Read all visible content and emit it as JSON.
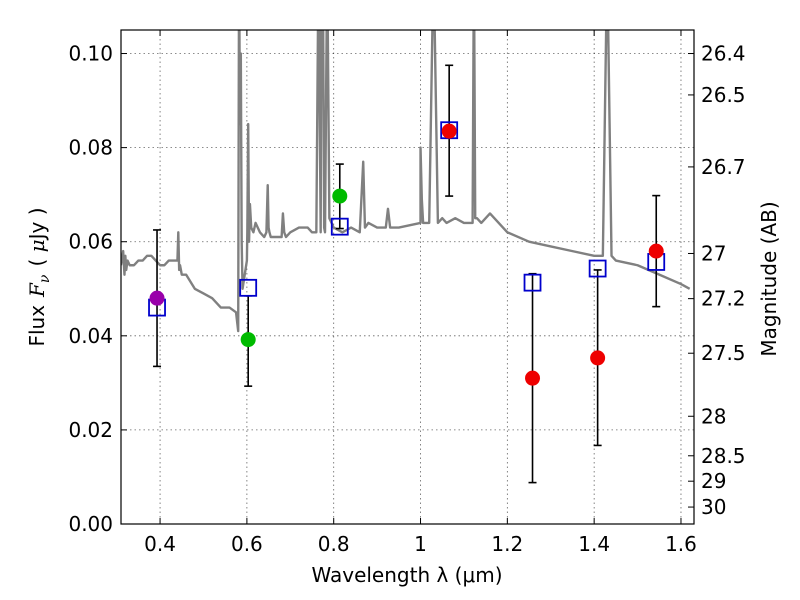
{
  "chart_data": {
    "type": "scatter",
    "xlabel": "Wavelength  λ (μm)",
    "ylabel_prefix": "Flux",
    "ylabel_var": "F",
    "ylabel_sub": "ν",
    "ylabel_unit_prefix": "( ",
    "ylabel_unit_mu": "μ",
    "ylabel_unit_suffix": "Jy )",
    "y2label": "Magnitude (AB)",
    "xlim": [
      0.31,
      1.63
    ],
    "ylim": [
      0.0,
      0.105
    ],
    "grid": true,
    "x_ticks": [
      0.4,
      0.6,
      0.8,
      1.0,
      1.2,
      1.4,
      1.6
    ],
    "x_tick_labels": [
      "0.4",
      "0.6",
      "0.8",
      "1",
      "1.2",
      "1.4",
      "1.6"
    ],
    "y_ticks": [
      0.0,
      0.02,
      0.04,
      0.06,
      0.08,
      0.1
    ],
    "y_tick_labels": [
      "0.00",
      "0.02",
      "0.04",
      "0.06",
      "0.08",
      "0.10"
    ],
    "y2_ticks": [
      {
        "label": "26.4",
        "flux": 0.1
      },
      {
        "label": "26.5",
        "flux": 0.0912
      },
      {
        "label": "26.7",
        "flux": 0.0759
      },
      {
        "label": "27",
        "flux": 0.0575
      },
      {
        "label": "27.2",
        "flux": 0.0479
      },
      {
        "label": "27.5",
        "flux": 0.0363
      },
      {
        "label": "28",
        "flux": 0.0229
      },
      {
        "label": "28.5",
        "flux": 0.0145
      },
      {
        "label": "29",
        "flux": 0.0091
      },
      {
        "label": "30",
        "flux": 0.0036
      }
    ],
    "observed": [
      {
        "x": 0.393,
        "y": 0.048,
        "yerr_low": 0.0335,
        "yerr_high": 0.0625,
        "color": "#9900aa"
      },
      {
        "x": 0.603,
        "y": 0.0392,
        "yerr_low": 0.0293,
        "yerr_high": 0.0485,
        "color": "#00bb00"
      },
      {
        "x": 0.814,
        "y": 0.0697,
        "yerr_low": 0.0628,
        "yerr_high": 0.0765,
        "color": "#00bb00"
      },
      {
        "x": 1.066,
        "y": 0.0835,
        "yerr_low": 0.0697,
        "yerr_high": 0.0975,
        "color": "#ee0000"
      },
      {
        "x": 1.258,
        "y": 0.031,
        "yerr_low": 0.0088,
        "yerr_high": 0.0532,
        "color": "#ee0000"
      },
      {
        "x": 1.408,
        "y": 0.0353,
        "yerr_low": 0.0167,
        "yerr_high": 0.054,
        "color": "#ee0000"
      },
      {
        "x": 1.543,
        "y": 0.058,
        "yerr_low": 0.0462,
        "yerr_high": 0.0698,
        "color": "#ee0000"
      }
    ],
    "model_points": {
      "color": "#0000cc",
      "points": [
        {
          "x": 0.393,
          "y": 0.046
        },
        {
          "x": 0.603,
          "y": 0.0502
        },
        {
          "x": 0.814,
          "y": 0.0632
        },
        {
          "x": 1.066,
          "y": 0.0837
        },
        {
          "x": 1.258,
          "y": 0.0513
        },
        {
          "x": 1.408,
          "y": 0.0543
        },
        {
          "x": 1.543,
          "y": 0.0557
        }
      ]
    },
    "spectrum": {
      "color": "#808080",
      "x": [
        0.31,
        0.315,
        0.318,
        0.32,
        0.322,
        0.325,
        0.33,
        0.34,
        0.35,
        0.36,
        0.37,
        0.38,
        0.39,
        0.4,
        0.41,
        0.42,
        0.43,
        0.44,
        0.442,
        0.444,
        0.446,
        0.45,
        0.46,
        0.48,
        0.5,
        0.52,
        0.54,
        0.56,
        0.575,
        0.58,
        0.582,
        0.584,
        0.586,
        0.588,
        0.59,
        0.6,
        0.601,
        0.603,
        0.605,
        0.607,
        0.61,
        0.615,
        0.62,
        0.63,
        0.64,
        0.645,
        0.648,
        0.65,
        0.652,
        0.655,
        0.66,
        0.67,
        0.68,
        0.683,
        0.686,
        0.69,
        0.7,
        0.72,
        0.73,
        0.74,
        0.75,
        0.76,
        0.765,
        0.77,
        0.772,
        0.775,
        0.778,
        0.78,
        0.785,
        0.79,
        0.795,
        0.8,
        0.82,
        0.84,
        0.86,
        0.868,
        0.872,
        0.88,
        0.9,
        0.92,
        0.925,
        0.93,
        0.95,
        1.0,
        1.0,
        1.003,
        1.006,
        1.01,
        1.02,
        1.03,
        1.04,
        1.05,
        1.06,
        1.08,
        1.1,
        1.12,
        1.123,
        1.126,
        1.13,
        1.14,
        1.16,
        1.2,
        1.25,
        1.3,
        1.35,
        1.4,
        1.42,
        1.43,
        1.44,
        1.45,
        1.5,
        1.55,
        1.6,
        1.62
      ],
      "y": [
        0.055,
        0.058,
        0.053,
        0.057,
        0.054,
        0.056,
        0.055,
        0.055,
        0.056,
        0.056,
        0.057,
        0.057,
        0.056,
        0.055,
        0.055,
        0.056,
        0.056,
        0.056,
        0.062,
        0.054,
        0.055,
        0.053,
        0.053,
        0.05,
        0.049,
        0.048,
        0.046,
        0.046,
        0.045,
        0.041,
        0.12,
        0.085,
        0.1,
        0.06,
        0.05,
        0.056,
        0.062,
        0.085,
        0.06,
        0.068,
        0.063,
        0.062,
        0.064,
        0.062,
        0.061,
        0.062,
        0.072,
        0.063,
        0.062,
        0.061,
        0.061,
        0.061,
        0.061,
        0.066,
        0.062,
        0.061,
        0.062,
        0.063,
        0.063,
        0.063,
        0.062,
        0.062,
        0.12,
        0.062,
        0.12,
        0.12,
        0.063,
        0.062,
        0.12,
        0.065,
        0.064,
        0.063,
        0.062,
        0.063,
        0.062,
        0.077,
        0.063,
        0.064,
        0.063,
        0.063,
        0.067,
        0.063,
        0.063,
        0.064,
        0.08,
        0.069,
        0.064,
        0.064,
        0.064,
        0.12,
        0.064,
        0.065,
        0.064,
        0.065,
        0.064,
        0.064,
        0.12,
        0.065,
        0.065,
        0.064,
        0.066,
        0.062,
        0.06,
        0.059,
        0.058,
        0.057,
        0.057,
        0.12,
        0.057,
        0.056,
        0.055,
        0.053,
        0.051,
        0.05
      ]
    }
  }
}
